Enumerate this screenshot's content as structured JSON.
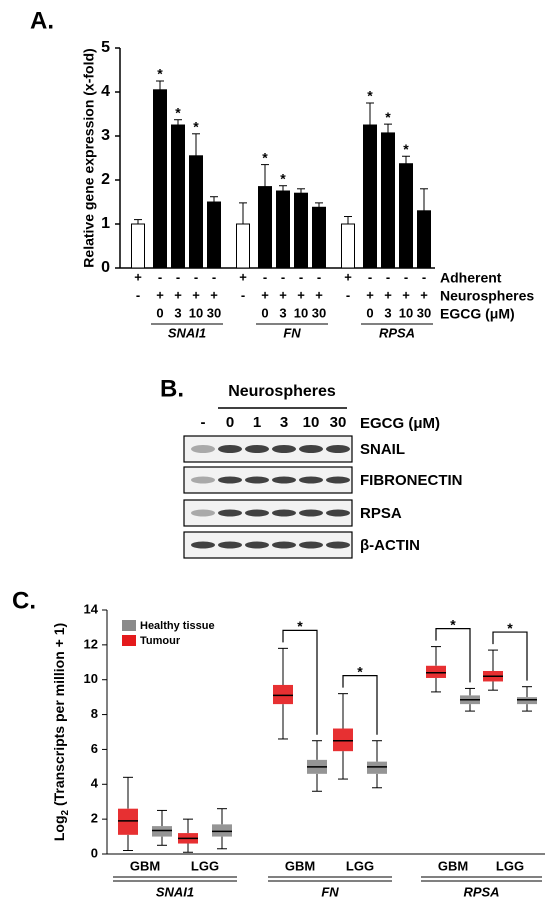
{
  "panel_labels": [
    "A.",
    "B.",
    "C."
  ],
  "chart_data": [
    {
      "type": "bar",
      "y_label": "Relative gene expression (x-fold)",
      "ylim": [
        0,
        5
      ],
      "yticks": [
        0,
        1,
        2,
        3,
        4,
        5
      ],
      "bar_colors": [
        "#ffffff",
        "#000000",
        "#000000",
        "#000000",
        "#000000"
      ],
      "condition_rows": [
        {
          "label": "Adherent",
          "marks": [
            "+",
            "-",
            "-",
            "-",
            "-"
          ]
        },
        {
          "label": "Neurospheres",
          "marks": [
            "-",
            "+",
            "+",
            "+",
            "+"
          ]
        },
        {
          "label": "EGCG (μM)",
          "marks": [
            null,
            "0",
            "3",
            "10",
            "30"
          ]
        }
      ],
      "groups": [
        {
          "name": "SNAI1",
          "values": [
            1.0,
            4.05,
            3.25,
            2.55,
            1.5
          ],
          "errors": [
            0.1,
            0.2,
            0.12,
            0.5,
            0.12
          ],
          "stars": [
            null,
            "*",
            "*",
            "*",
            null
          ]
        },
        {
          "name": "FN",
          "values": [
            1.0,
            1.85,
            1.75,
            1.7,
            1.38
          ],
          "errors": [
            0.48,
            0.5,
            0.12,
            0.1,
            0.1
          ],
          "stars": [
            null,
            "*",
            "*",
            null,
            null
          ]
        },
        {
          "name": "RPSA",
          "values": [
            1.0,
            3.25,
            3.07,
            2.37,
            1.3
          ],
          "errors": [
            0.17,
            0.5,
            0.2,
            0.17,
            0.5
          ],
          "stars": [
            null,
            "*",
            "*",
            "*",
            null
          ]
        }
      ]
    },
    {
      "type": "box",
      "y_label": {
        "base": "Log",
        "subscript": "2",
        "rest": " (Transcripts per million + 1)"
      },
      "ylim": [
        0,
        14
      ],
      "yticks": [
        0,
        2,
        4,
        6,
        8,
        10,
        12,
        14
      ],
      "legend": "upper left",
      "genes": [
        "SNAI1",
        "FN",
        "RPSA"
      ],
      "subgroups": [
        "GBM",
        "LGG",
        "GBM",
        "LGG",
        "GBM",
        "LGG"
      ],
      "stars": [
        null,
        null,
        "*",
        "*",
        "*",
        "*"
      ],
      "series": [
        {
          "name": "Healthy tissue",
          "color": "#8a8a8a",
          "boxes": [
            {
              "min": 0.5,
              "q1": 1.0,
              "median": 1.35,
              "q3": 1.6,
              "max": 2.5
            },
            {
              "min": 0.3,
              "q1": 1.0,
              "median": 1.3,
              "q3": 1.7,
              "max": 2.6
            },
            {
              "min": 3.6,
              "q1": 4.6,
              "median": 5.0,
              "q3": 5.4,
              "max": 6.5
            },
            {
              "min": 3.8,
              "q1": 4.6,
              "median": 5.0,
              "q3": 5.3,
              "max": 6.5
            },
            {
              "min": 8.2,
              "q1": 8.6,
              "median": 8.85,
              "q3": 9.1,
              "max": 9.5
            },
            {
              "min": 8.2,
              "q1": 8.6,
              "median": 8.85,
              "q3": 9.0,
              "max": 9.6
            }
          ]
        },
        {
          "name": "Tumour",
          "color": "#e41a1c",
          "boxes": [
            {
              "min": 0.2,
              "q1": 1.1,
              "median": 1.9,
              "q3": 2.6,
              "max": 4.4
            },
            {
              "min": 0.1,
              "q1": 0.6,
              "median": 0.9,
              "q3": 1.2,
              "max": 2.0
            },
            {
              "min": 6.6,
              "q1": 8.6,
              "median": 9.1,
              "q3": 9.7,
              "max": 11.8
            },
            {
              "min": 4.3,
              "q1": 5.9,
              "median": 6.5,
              "q3": 7.2,
              "max": 9.2
            },
            {
              "min": 9.3,
              "q1": 10.1,
              "median": 10.4,
              "q3": 10.8,
              "max": 11.9
            },
            {
              "min": 9.4,
              "q1": 9.9,
              "median": 10.2,
              "q3": 10.5,
              "max": 11.7
            }
          ]
        }
      ]
    }
  ],
  "blot": {
    "header": "Neurospheres",
    "lanes": [
      "-",
      "0",
      "1",
      "3",
      "10",
      "30"
    ],
    "lane_unit": "EGCG (μM)",
    "rows": [
      "SNAIL",
      "FIBRONECTIN",
      "RPSA",
      "β-ACTIN"
    ]
  }
}
